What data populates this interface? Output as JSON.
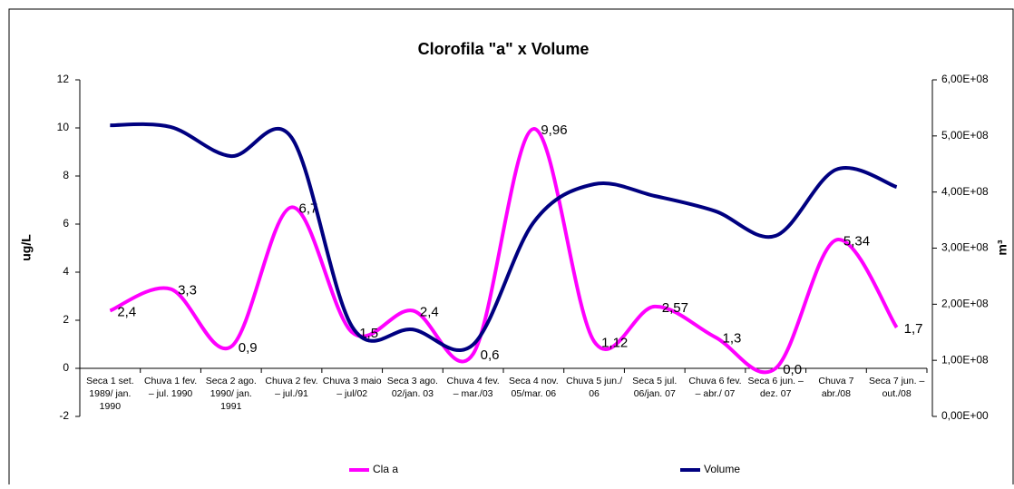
{
  "chart_data": {
    "type": "line",
    "title": "Clorofila \"a\" x Volume",
    "ylabel": "ug/L",
    "y2label": "m³",
    "categories": [
      "Seca 1 set. 1989/ jan. 1990",
      "Chuva 1 fev. – jul. 1990",
      "Seca 2 ago. 1990/ jan. 1991",
      "Chuva 2 fev. – jul./91",
      "Chuva 3 maio – jul/02",
      "Seca 3 ago. 02/jan. 03",
      "Chuva 4 fev. – mar./03",
      "Seca 4 nov. 05/mar. 06",
      "Chuva 5 jun./ 06",
      "Seca 5 jul. 06/jan. 07",
      "Chuva 6 fev. – abr./ 07",
      "Seca 6 jun. – dez. 07",
      "Chuva 7 abr./08",
      "Seca 7 jun. – out./08"
    ],
    "series": [
      {
        "name": "Cla a",
        "color": "#ff00ff",
        "values": [
          2.4,
          3.3,
          0.9,
          6.7,
          1.5,
          2.4,
          0.6,
          9.96,
          1.12,
          2.57,
          1.3,
          0.0,
          5.34,
          1.7
        ],
        "value_labels": [
          "2,4",
          "3,3",
          "0,9",
          "6,7",
          "1,5",
          "2,4",
          "0,6",
          "9,96",
          "1,12",
          "2,57",
          "1,3",
          "0,0",
          "5,34",
          "1,7"
        ]
      },
      {
        "name": "Volume",
        "color": "#000080",
        "axis": "y2",
        "values": [
          519000000,
          516000000,
          464000000,
          497000000,
          160000000,
          155000000,
          128000000,
          346000000,
          414000000,
          393000000,
          366000000,
          322000000,
          440000000,
          409000000
        ]
      }
    ],
    "ylim": [
      -2,
      12
    ],
    "yticks": [
      -2,
      0,
      2,
      4,
      6,
      8,
      10,
      12
    ],
    "y2lim": [
      0,
      600000000
    ],
    "y2ticks": [
      {
        "value": 0,
        "label": "0,00E+00"
      },
      {
        "value": 100000000,
        "label": "1,00E+08"
      },
      {
        "value": 200000000,
        "label": "2,00E+08"
      },
      {
        "value": 300000000,
        "label": "3,00E+08"
      },
      {
        "value": 400000000,
        "label": "4,00E+08"
      },
      {
        "value": 500000000,
        "label": "5,00E+08"
      },
      {
        "value": 600000000,
        "label": "6,00E+08"
      }
    ],
    "legend": "bottom",
    "smooth": true
  }
}
